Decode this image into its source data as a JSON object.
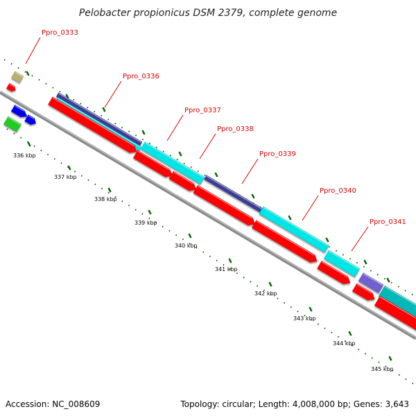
{
  "title": "Pelobacter propionicus DSM 2379, complete genome",
  "accession": "Accession: NC_008609",
  "summary": "Topology: circular; Length: 4,008,000 bp; Genes: 3,643",
  "gene_labels": [
    "Ppro_0333",
    "Ppro_0336",
    "Ppro_0337",
    "Ppro_0338",
    "Ppro_0339",
    "Ppro_0340",
    "Ppro_0341"
  ],
  "scale_labels": [
    "336 kbp",
    "337 kbp",
    "338 kbp",
    "339 kbp",
    "340 kbp",
    "341 kbp",
    "342 kbp",
    "343 kbp",
    "344 kbp",
    "345 kbp"
  ],
  "colors": {
    "backbone": "#8a8a8a",
    "cds": "#ff0000",
    "gene_cyan": "#00e5e5",
    "gene_teal": "#00b8b8",
    "gene_navy": "#3c3c96",
    "gene_violet": "#7060d0",
    "gene_blue": "#0000ee",
    "gene_green": "#22cc22",
    "gene_khaki": "#b8b070",
    "ticks": "#006600",
    "label_text": "#dd0000"
  }
}
